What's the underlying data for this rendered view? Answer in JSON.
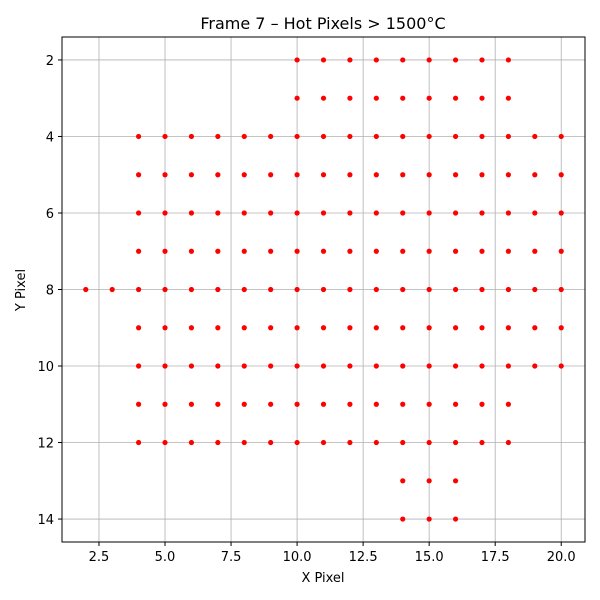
{
  "chart_data": {
    "type": "scatter",
    "title": "Frame 7 – Hot Pixels > 1500°C",
    "xlabel": "X Pixel",
    "ylabel": "Y Pixel",
    "xlim": [
      1.1,
      20.9
    ],
    "ylim": [
      14.6,
      1.4
    ],
    "y_inverted": true,
    "grid": true,
    "marker_color": "#ff0000",
    "x_ticks": [
      2.5,
      5.0,
      7.5,
      10.0,
      12.5,
      15.0,
      17.5,
      20.0
    ],
    "x_tick_labels": [
      "2.5",
      "5.0",
      "7.5",
      "10.0",
      "12.5",
      "15.0",
      "17.5",
      "20.0"
    ],
    "y_ticks": [
      2,
      4,
      6,
      8,
      10,
      12,
      14
    ],
    "y_tick_labels": [
      "2",
      "4",
      "6",
      "8",
      "10",
      "12",
      "14"
    ],
    "rows": [
      {
        "y": 2,
        "x": [
          10,
          11,
          12,
          13,
          14,
          15,
          16,
          17,
          18
        ]
      },
      {
        "y": 3,
        "x": [
          10,
          11,
          12,
          13,
          14,
          15,
          16,
          17,
          18
        ]
      },
      {
        "y": 4,
        "x": [
          4,
          5,
          6,
          7,
          8,
          9,
          10,
          11,
          12,
          13,
          14,
          15,
          16,
          17,
          18,
          19,
          20
        ]
      },
      {
        "y": 5,
        "x": [
          4,
          5,
          6,
          7,
          8,
          9,
          10,
          11,
          12,
          13,
          14,
          15,
          16,
          17,
          18,
          19,
          20
        ]
      },
      {
        "y": 6,
        "x": [
          4,
          5,
          6,
          7,
          8,
          9,
          10,
          11,
          12,
          13,
          14,
          15,
          16,
          17,
          18,
          19,
          20
        ]
      },
      {
        "y": 7,
        "x": [
          4,
          5,
          6,
          7,
          8,
          9,
          10,
          11,
          12,
          13,
          14,
          15,
          16,
          17,
          18,
          19,
          20
        ]
      },
      {
        "y": 8,
        "x": [
          2,
          3,
          4,
          5,
          6,
          7,
          8,
          9,
          10,
          11,
          12,
          13,
          14,
          15,
          16,
          17,
          18,
          19,
          20
        ]
      },
      {
        "y": 9,
        "x": [
          4,
          5,
          6,
          7,
          8,
          9,
          10,
          11,
          12,
          13,
          14,
          15,
          16,
          17,
          18,
          19,
          20
        ]
      },
      {
        "y": 10,
        "x": [
          4,
          5,
          6,
          7,
          8,
          9,
          10,
          11,
          12,
          13,
          14,
          15,
          16,
          17,
          18,
          19,
          20
        ]
      },
      {
        "y": 11,
        "x": [
          4,
          5,
          6,
          7,
          8,
          9,
          10,
          11,
          12,
          13,
          14,
          15,
          16,
          17,
          18
        ]
      },
      {
        "y": 12,
        "x": [
          4,
          5,
          6,
          7,
          8,
          9,
          10,
          11,
          12,
          13,
          14,
          15,
          16,
          17,
          18
        ]
      },
      {
        "y": 13,
        "x": [
          14,
          15,
          16
        ]
      },
      {
        "y": 14,
        "x": [
          14,
          15,
          16
        ]
      }
    ]
  }
}
